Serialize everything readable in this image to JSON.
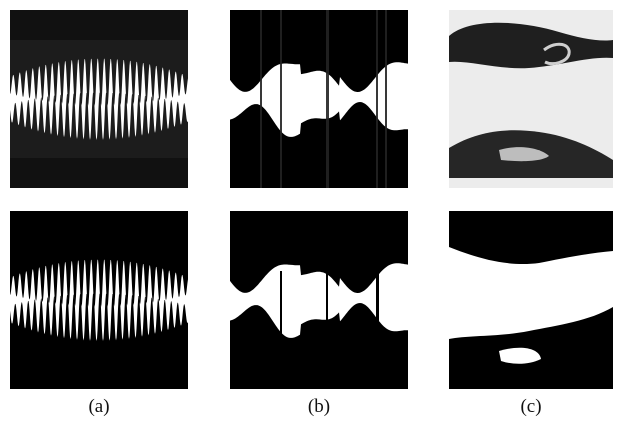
{
  "figure": {
    "captions": [
      "(a)",
      "(b)",
      "(c)"
    ],
    "columns": [
      {
        "top_image": "grayscale-sinusoidal-edge-specimen",
        "bottom_image": "binarized-sinusoidal-edge-specimen"
      },
      {
        "top_image": "grayscale-noisy-wavy-specimen",
        "bottom_image": "binarized-noisy-wavy-specimen"
      },
      {
        "top_image": "grayscale-deformed-smooth-specimen",
        "bottom_image": "binarized-deformed-smooth-specimen"
      }
    ],
    "colors": {
      "background": "#ffffff",
      "dark": "#000000",
      "gray_specimen": "#1f1f1f",
      "light_gray_bg": "#ececec"
    }
  }
}
